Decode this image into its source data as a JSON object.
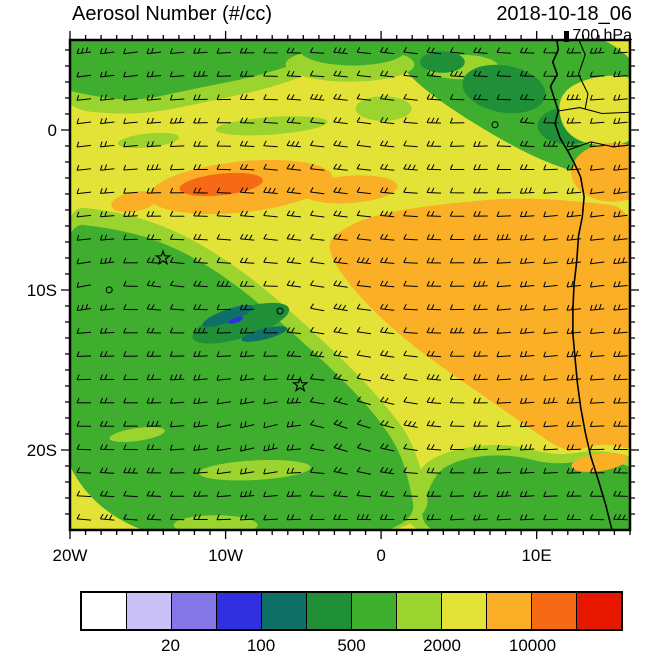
{
  "header": {
    "title": "Aerosol Number (#/cc)",
    "datetime": "2018-10-18_06",
    "level": "700 hPa"
  },
  "axes": {
    "lat_labels": [
      {
        "text": "0",
        "v": 0.1837
      },
      {
        "text": "10S",
        "v": 0.5102
      },
      {
        "text": "20S",
        "v": 0.8367
      }
    ],
    "lon_labels": [
      {
        "text": "20W",
        "u": 0.0
      },
      {
        "text": "10W",
        "u": 0.2778
      },
      {
        "text": "0",
        "u": 0.5556
      },
      {
        "text": "10E",
        "u": 0.8333
      }
    ]
  },
  "colorbar": {
    "colors": [
      "#ffffff",
      "#cac2f6",
      "#8577e8",
      "#3030e0",
      "#0e7066",
      "#1f9038",
      "#3fae2e",
      "#9bd32f",
      "#e3e337",
      "#fbaf27",
      "#f66a15",
      "#e81800"
    ],
    "tick_labels": [
      {
        "text": "20",
        "boundary": 2
      },
      {
        "text": "100",
        "boundary": 4
      },
      {
        "text": "500",
        "boundary": 6
      },
      {
        "text": "2000",
        "boundary": 8
      },
      {
        "text": "10000",
        "boundary": 10
      }
    ]
  },
  "chart_data": {
    "type": "heatmap",
    "variable": "Aerosol Number",
    "units": "#/cc",
    "time": "2018-10-18_06",
    "pressure_level": "700 hPa",
    "lon_range": [
      -20,
      16
    ],
    "lat_range": [
      -25,
      5.6
    ],
    "contour_levels": [
      10,
      20,
      50,
      100,
      200,
      500,
      1000,
      2000,
      5000,
      10000,
      20000
    ],
    "overlay": "wind barbs",
    "base_color": 8,
    "regions": [
      {
        "name": "topright-green",
        "color": 6,
        "pts": [
          [
            0.56,
            -0.03
          ],
          [
            1.03,
            -0.03
          ],
          [
            1.03,
            0.305
          ],
          [
            0.9,
            0.27
          ],
          [
            0.82,
            0.235
          ],
          [
            0.72,
            0.17
          ],
          [
            0.63,
            0.1
          ],
          [
            0.58,
            0.04
          ]
        ]
      },
      {
        "name": "topright-lightgreen",
        "color": 7,
        "e": [
          0.7,
          0.055,
          0.065,
          0.025,
          0
        ]
      },
      {
        "name": "topright-darkgreen-1",
        "color": 5,
        "e": [
          0.775,
          0.1,
          0.075,
          0.048,
          10
        ]
      },
      {
        "name": "topright-darkgreen-2",
        "color": 5,
        "e": [
          0.89,
          0.175,
          0.055,
          0.038,
          0
        ]
      },
      {
        "name": "topright-darkgreen-3",
        "color": 5,
        "e": [
          0.665,
          0.045,
          0.04,
          0.022,
          0
        ]
      },
      {
        "name": "land-yellow-north",
        "color": 8,
        "pts": [
          [
            0.865,
            0.09
          ],
          [
            1.03,
            0.06
          ],
          [
            1.03,
            0.215
          ],
          [
            0.885,
            0.215
          ]
        ]
      },
      {
        "name": "land-orange-east",
        "color": 9,
        "e": [
          0.97,
          0.27,
          0.075,
          0.06,
          0
        ]
      },
      {
        "name": "northwest-lightgreen-fringe",
        "color": 7,
        "pts": [
          [
            -0.03,
            -0.03
          ],
          [
            0.48,
            -0.03
          ],
          [
            0.455,
            0.055
          ],
          [
            0.37,
            0.095
          ],
          [
            0.25,
            0.125
          ],
          [
            0.12,
            0.155
          ],
          [
            -0.03,
            0.14
          ]
        ]
      },
      {
        "name": "northwest-green",
        "color": 6,
        "pts": [
          [
            -0.03,
            -0.03
          ],
          [
            0.44,
            -0.03
          ],
          [
            0.415,
            0.045
          ],
          [
            0.33,
            0.075
          ],
          [
            0.22,
            0.1
          ],
          [
            0.12,
            0.125
          ],
          [
            0.04,
            0.115
          ],
          [
            -0.03,
            0.095
          ]
        ]
      },
      {
        "name": "topmid-lightgreen",
        "color": 7,
        "e": [
          0.5,
          0.05,
          0.115,
          0.035,
          0
        ]
      },
      {
        "name": "topmid-green",
        "color": 6,
        "e": [
          0.505,
          0.02,
          0.095,
          0.032,
          0
        ]
      },
      {
        "name": "north-lightgreen-streak-1",
        "color": 7,
        "e": [
          0.36,
          0.175,
          0.1,
          0.018,
          -4
        ]
      },
      {
        "name": "north-lightgreen-streak-2",
        "color": 7,
        "e": [
          0.14,
          0.205,
          0.055,
          0.014,
          -6
        ]
      },
      {
        "name": "north-green-patch",
        "color": 7,
        "e": [
          0.56,
          0.14,
          0.05,
          0.025,
          0
        ]
      },
      {
        "name": "orange-band-north",
        "color": 9,
        "e": [
          0.305,
          0.3,
          0.165,
          0.052,
          -6
        ]
      },
      {
        "name": "orange-band-east",
        "color": 9,
        "e": [
          0.5,
          0.305,
          0.085,
          0.028,
          -4
        ]
      },
      {
        "name": "orange-band-west",
        "color": 9,
        "e": [
          0.115,
          0.33,
          0.042,
          0.02,
          -10
        ]
      },
      {
        "name": "orange-band-core",
        "color": 10,
        "e": [
          0.27,
          0.295,
          0.075,
          0.022,
          -6
        ]
      },
      {
        "name": "orange-main",
        "color": 9,
        "pts": [
          [
            0.46,
            0.405
          ],
          [
            0.52,
            0.365
          ],
          [
            0.6,
            0.345
          ],
          [
            0.7,
            0.33
          ],
          [
            0.8,
            0.322
          ],
          [
            0.9,
            0.328
          ],
          [
            1.03,
            0.345
          ],
          [
            1.03,
            0.845
          ],
          [
            0.95,
            0.82
          ],
          [
            0.89,
            0.845
          ],
          [
            0.83,
            0.8
          ],
          [
            0.75,
            0.735
          ],
          [
            0.66,
            0.665
          ],
          [
            0.575,
            0.59
          ],
          [
            0.51,
            0.515
          ],
          [
            0.468,
            0.45
          ]
        ]
      },
      {
        "name": "southeast-lightgreen-fringe",
        "color": 7,
        "pts": [
          [
            0.585,
            1.03
          ],
          [
            0.615,
            0.875
          ],
          [
            0.68,
            0.835
          ],
          [
            0.78,
            0.822
          ],
          [
            0.87,
            0.85
          ],
          [
            0.94,
            0.835
          ],
          [
            1.03,
            0.855
          ],
          [
            1.03,
            1.03
          ]
        ]
      },
      {
        "name": "southeast-green",
        "color": 6,
        "pts": [
          [
            0.615,
            1.03
          ],
          [
            0.645,
            0.885
          ],
          [
            0.705,
            0.852
          ],
          [
            0.785,
            0.845
          ],
          [
            0.865,
            0.868
          ],
          [
            0.935,
            0.855
          ],
          [
            1.03,
            0.875
          ],
          [
            1.03,
            1.03
          ]
        ]
      },
      {
        "name": "southwest-lightgreen-fringe",
        "color": 7,
        "pts": [
          [
            -0.03,
            0.335
          ],
          [
            0.08,
            0.35
          ],
          [
            0.16,
            0.375
          ],
          [
            0.24,
            0.42
          ],
          [
            0.33,
            0.49
          ],
          [
            0.41,
            0.57
          ],
          [
            0.49,
            0.655
          ],
          [
            0.56,
            0.74
          ],
          [
            0.62,
            0.83
          ],
          [
            0.655,
            1.03
          ],
          [
            -0.03,
            1.03
          ]
        ]
      },
      {
        "name": "southwest-green",
        "color": 6,
        "pts": [
          [
            -0.03,
            0.37
          ],
          [
            0.08,
            0.385
          ],
          [
            0.16,
            0.41
          ],
          [
            0.24,
            0.455
          ],
          [
            0.32,
            0.52
          ],
          [
            0.4,
            0.6
          ],
          [
            0.48,
            0.685
          ],
          [
            0.55,
            0.77
          ],
          [
            0.6,
            0.86
          ],
          [
            0.625,
            1.03
          ],
          [
            -0.03,
            1.03
          ]
        ]
      },
      {
        "name": "teal-underlay-darkgreen",
        "color": 5,
        "e": [
          0.305,
          0.578,
          0.09,
          0.03,
          -17
        ]
      },
      {
        "name": "teal-streak-1",
        "color": 4,
        "e": [
          0.282,
          0.563,
          0.048,
          0.013,
          -20
        ]
      },
      {
        "name": "teal-streak-2",
        "color": 4,
        "e": [
          0.347,
          0.6,
          0.042,
          0.011,
          -14
        ]
      },
      {
        "name": "blue-speck",
        "color": 3,
        "e": [
          0.296,
          0.572,
          0.014,
          0.005,
          -20
        ]
      },
      {
        "name": "south-lightgreen-streak-1",
        "color": 7,
        "e": [
          0.33,
          0.878,
          0.1,
          0.02,
          -3
        ]
      },
      {
        "name": "south-lightgreen-streak-2",
        "color": 7,
        "e": [
          0.12,
          0.805,
          0.05,
          0.013,
          -8
        ]
      },
      {
        "name": "south-lightgreen-streak-3",
        "color": 7,
        "e": [
          0.26,
          0.99,
          0.075,
          0.02,
          0
        ]
      },
      {
        "name": "coast-orange-south",
        "color": 9,
        "e": [
          0.945,
          0.862,
          0.05,
          0.018,
          -8
        ]
      }
    ],
    "coastline": [
      [
        0.868,
        -0.01
      ],
      [
        0.872,
        0.02
      ],
      [
        0.862,
        0.045
      ],
      [
        0.87,
        0.07
      ],
      [
        0.858,
        0.095
      ],
      [
        0.865,
        0.12
      ],
      [
        0.872,
        0.145
      ],
      [
        0.866,
        0.17
      ],
      [
        0.875,
        0.2
      ],
      [
        0.888,
        0.225
      ],
      [
        0.9,
        0.25
      ],
      [
        0.912,
        0.28
      ],
      [
        0.918,
        0.32
      ],
      [
        0.915,
        0.36
      ],
      [
        0.908,
        0.4
      ],
      [
        0.905,
        0.45
      ],
      [
        0.9,
        0.5
      ],
      [
        0.898,
        0.55
      ],
      [
        0.898,
        0.6
      ],
      [
        0.902,
        0.65
      ],
      [
        0.906,
        0.7
      ],
      [
        0.912,
        0.75
      ],
      [
        0.92,
        0.8
      ],
      [
        0.93,
        0.85
      ],
      [
        0.944,
        0.9
      ],
      [
        0.957,
        0.95
      ],
      [
        0.97,
        1.01
      ]
    ],
    "borders": [
      [
        [
          0.872,
          0.145
        ],
        [
          0.91,
          0.138
        ],
        [
          0.95,
          0.15
        ],
        [
          1.01,
          0.147
        ]
      ],
      [
        [
          0.888,
          0.225
        ],
        [
          0.93,
          0.208
        ],
        [
          0.97,
          0.218
        ],
        [
          1.01,
          0.213
        ]
      ],
      [
        [
          0.905,
          -0.01
        ],
        [
          0.92,
          0.03
        ],
        [
          0.908,
          0.07
        ],
        [
          0.925,
          0.11
        ],
        [
          0.92,
          0.14
        ]
      ]
    ],
    "markers": [
      {
        "type": "star",
        "lon": -14.0,
        "lat": -8.2,
        "u": 0.166,
        "v": 0.445
      },
      {
        "type": "star",
        "lon": -5.2,
        "lat": -16.1,
        "u": 0.411,
        "v": 0.704
      }
    ],
    "wind": {
      "nx": 24,
      "ny": 21,
      "barb_length": 14,
      "swirls": [
        {
          "c": [
            0.42,
            0.78
          ],
          "s": 0.55,
          "r": 0.06
        },
        {
          "c": [
            0.1,
            0.5
          ],
          "s": 0.28,
          "r": 0.012
        },
        {
          "c": [
            0.76,
            0.19
          ],
          "s": 0.22,
          "r": 0.012
        },
        {
          "c": [
            0.38,
            0.55
          ],
          "s": 0.25,
          "r": 0.01
        }
      ],
      "calm_points": [
        [
          0.07,
          0.51
        ],
        [
          0.375,
          0.553
        ],
        [
          0.759,
          0.173
        ]
      ]
    }
  }
}
